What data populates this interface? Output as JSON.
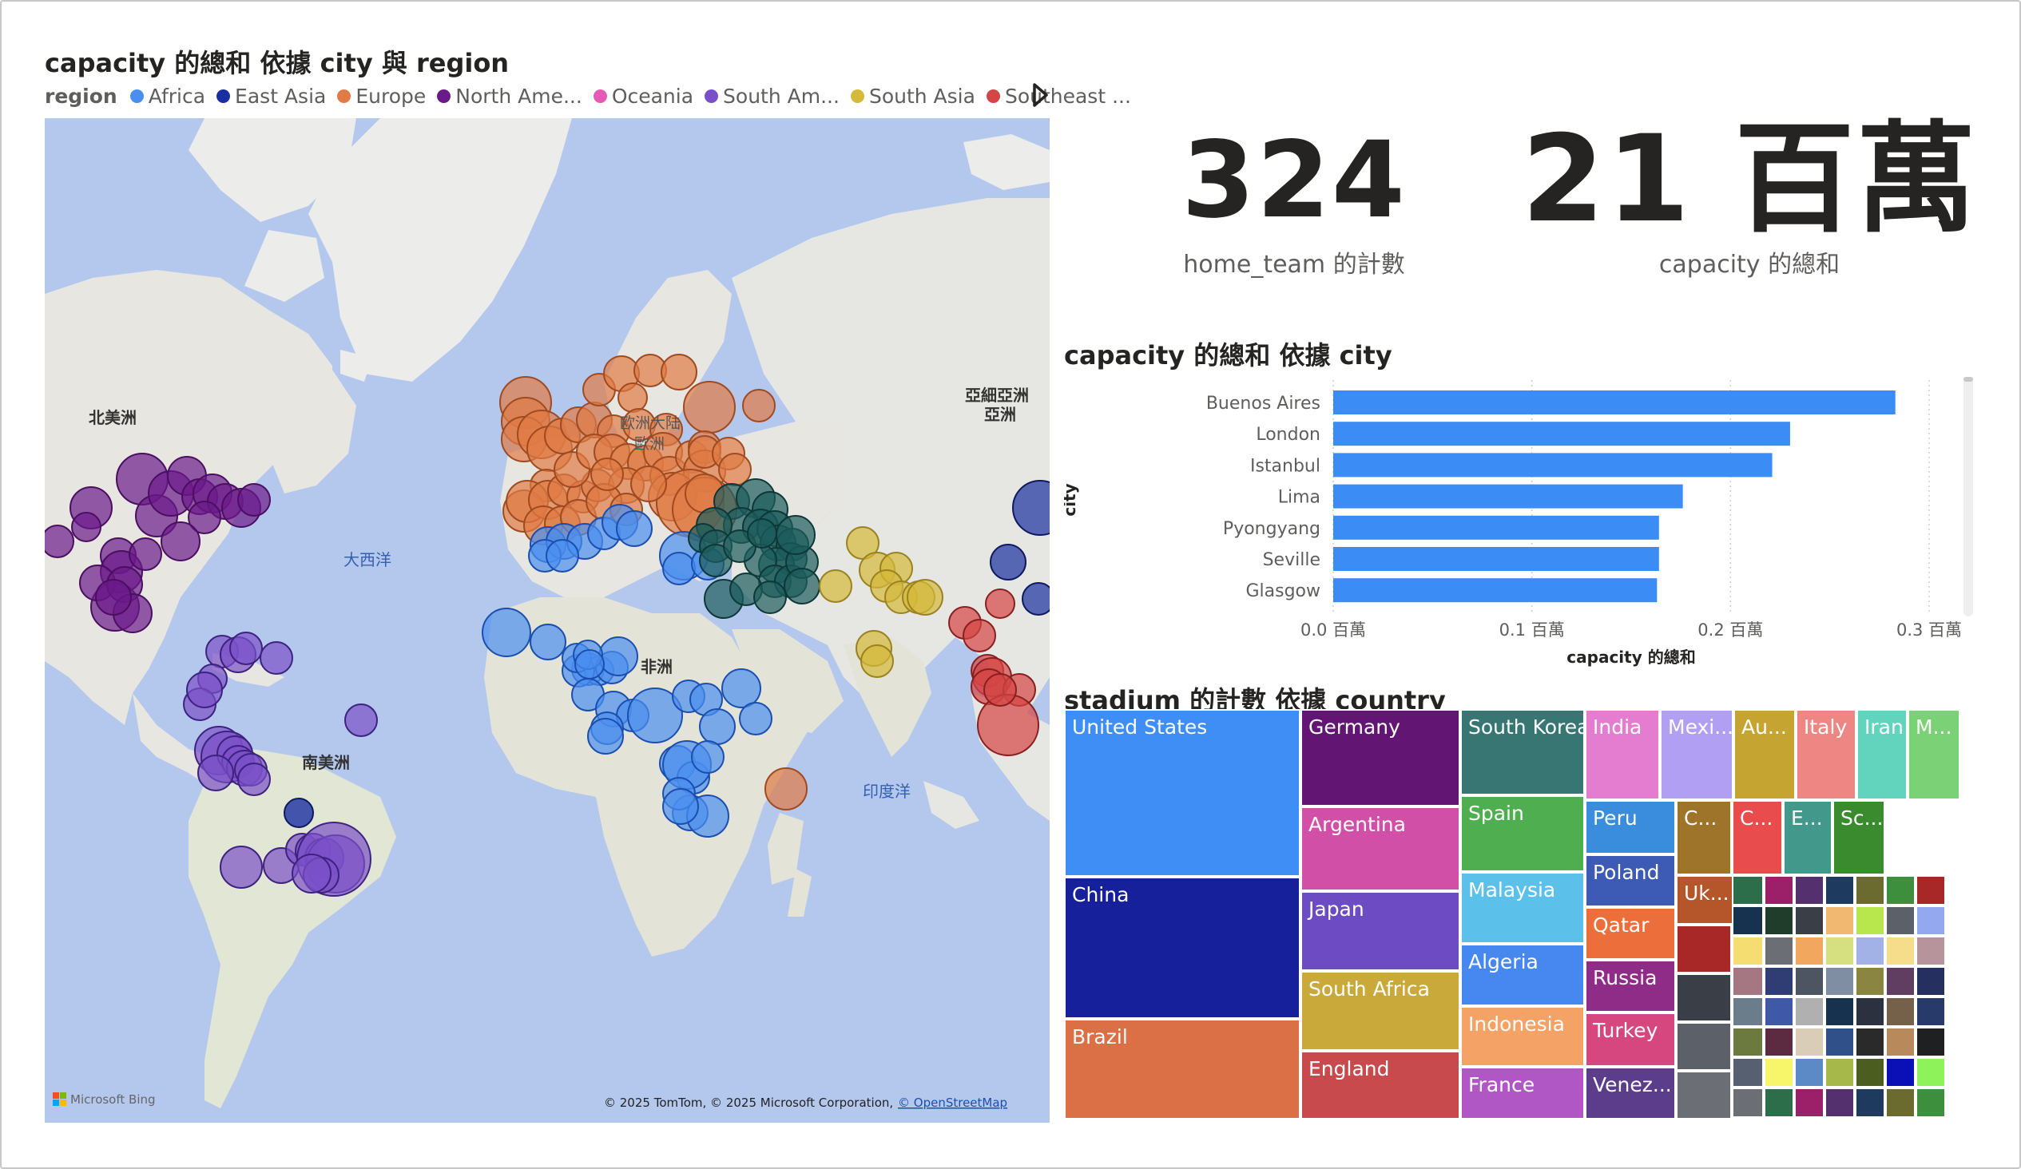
{
  "map": {
    "title": "capacity 的總和 依據 city 與 region",
    "legend_title": "region",
    "legend": [
      {
        "name": "Africa",
        "color": "#4a8ff0"
      },
      {
        "name": "East Asia",
        "color": "#1a2fa0"
      },
      {
        "name": "Europe",
        "color": "#e07b45"
      },
      {
        "name": "North Ame...",
        "color": "#6b1a8a"
      },
      {
        "name": "Oceania",
        "color": "#e55ab5"
      },
      {
        "name": "South Am...",
        "color": "#7a50c8"
      },
      {
        "name": "South Asia",
        "color": "#d4b93a"
      },
      {
        "name": "Southeast ...",
        "color": "#d44545"
      }
    ],
    "next_icon": "chevron-right-icon",
    "region_labels": {
      "north_america": "北美洲",
      "atlantic": "大西洋",
      "europe_1": "欧洲大陆",
      "europe_2": "歐洲",
      "asia_1": "亞細亞洲",
      "asia_2": "亞洲",
      "africa": "非洲",
      "south_america": "南美洲",
      "indian_ocean": "印度洋"
    },
    "bing_logo": "Microsoft Bing",
    "attribution": "© 2025 TomTom, © 2025 Microsoft Corporation,",
    "attribution_link": "© OpenStreetMap"
  },
  "kpis": [
    {
      "value": "324",
      "label": "home_team 的計數"
    },
    {
      "value": "21 百萬",
      "label": "capacity 的總和"
    }
  ],
  "bar_chart": {
    "title": "capacity 的總和 依據 city",
    "chart_data": {
      "type": "bar",
      "orientation": "horizontal",
      "categories": [
        "Buenos Aires",
        "London",
        "Istanbul",
        "Lima",
        "Pyongyang",
        "Seville",
        "Glasgow"
      ],
      "values": [
        0.283,
        0.23,
        0.221,
        0.176,
        0.164,
        0.164,
        0.163
      ],
      "value_units": "百萬",
      "xlabel": "capacity 的總和",
      "ylabel": "city",
      "xlim": [
        0,
        0.3
      ],
      "xticks": [
        "0.0 百萬",
        "0.1 百萬",
        "0.2 百萬",
        "0.3 百萬"
      ],
      "color": "#3b8cf4",
      "grid": "vertical dotted"
    }
  },
  "treemap": {
    "title": "stadium 的計數 依據 country",
    "cells": [
      {
        "label": "United States",
        "color": "#3f8ef6"
      },
      {
        "label": "China",
        "color": "#15209a"
      },
      {
        "label": "Brazil",
        "color": "#db6f45"
      },
      {
        "label": "Germany",
        "color": "#621573"
      },
      {
        "label": "Argentina",
        "color": "#d14fa6"
      },
      {
        "label": "Japan",
        "color": "#6c4bc3"
      },
      {
        "label": "South Africa",
        "color": "#c9a93a"
      },
      {
        "label": "England",
        "color": "#c84a4d"
      },
      {
        "label": "South Korea",
        "color": "#377673"
      },
      {
        "label": "Spain",
        "color": "#4fae4f"
      },
      {
        "label": "Malaysia",
        "color": "#5cc1ea"
      },
      {
        "label": "Algeria",
        "color": "#4688f0"
      },
      {
        "label": "Indonesia",
        "color": "#f5a267"
      },
      {
        "label": "France",
        "color": "#b157c5"
      },
      {
        "label": "India",
        "color": "#e47ccf"
      },
      {
        "label": "Mexi...",
        "color": "#b09ff2"
      },
      {
        "label": "Au...",
        "color": "#c6a432"
      },
      {
        "label": "Italy",
        "color": "#ee8683"
      },
      {
        "label": "Iran",
        "color": "#62d4bd"
      },
      {
        "label": "M...",
        "color": "#7bd276"
      },
      {
        "label": "Peru",
        "color": "#3a8ddd"
      },
      {
        "label": "Poland",
        "color": "#3d5bb5"
      },
      {
        "label": "Qatar",
        "color": "#ec6e3a"
      },
      {
        "label": "Russia",
        "color": "#8e2c87"
      },
      {
        "label": "Turkey",
        "color": "#d5477e"
      },
      {
        "label": "Venez...",
        "color": "#5b3d8c"
      },
      {
        "label": "C...",
        "color": "#9d742a"
      },
      {
        "label": "C...",
        "color": "#e84c4c"
      },
      {
        "label": "E...",
        "color": "#41988b"
      },
      {
        "label": "Sc...",
        "color": "#3a8a2e"
      },
      {
        "label": "Uk...",
        "color": "#b4562a"
      }
    ]
  }
}
